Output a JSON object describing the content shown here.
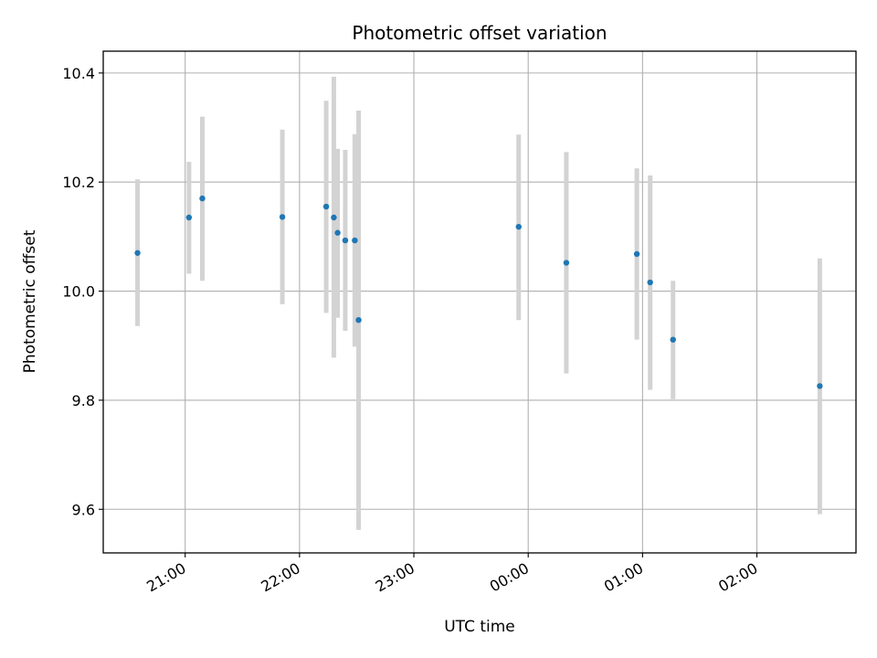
{
  "chart_data": {
    "type": "scatter",
    "title": "Photometric offset variation",
    "xlabel": "UTC time",
    "ylabel": "Photometric offset",
    "grid": true,
    "x_axis": {
      "start": "2000-01-01T20:17:00",
      "end": "2000-01-02T02:52:00",
      "ticks": [
        {
          "t": "2000-01-01T21:00:00",
          "label": "21:00"
        },
        {
          "t": "2000-01-01T22:00:00",
          "label": "22:00"
        },
        {
          "t": "2000-01-01T23:00:00",
          "label": "23:00"
        },
        {
          "t": "2000-01-02T00:00:00",
          "label": "00:00"
        },
        {
          "t": "2000-01-02T01:00:00",
          "label": "01:00"
        },
        {
          "t": "2000-01-02T02:00:00",
          "label": "02:00"
        }
      ]
    },
    "y_axis": {
      "range": [
        9.52,
        10.44
      ],
      "ticks": [
        9.6,
        9.8,
        10.0,
        10.2,
        10.4
      ],
      "tick_labels": [
        "9.6",
        "9.8",
        "10.0",
        "10.2",
        "10.4"
      ]
    },
    "series": [
      {
        "marker_color": "#1f77b4",
        "errorbar_color": "#d3d3d3",
        "points": [
          {
            "t": "2000-01-01T20:35:00",
            "y": 10.07,
            "lo": 9.936,
            "hi": 10.205
          },
          {
            "t": "2000-01-01T21:02:00",
            "y": 10.135,
            "lo": 10.032,
            "hi": 10.237
          },
          {
            "t": "2000-01-01T21:09:00",
            "y": 10.17,
            "lo": 10.019,
            "hi": 10.32
          },
          {
            "t": "2000-01-01T21:51:00",
            "y": 10.136,
            "lo": 9.976,
            "hi": 10.296
          },
          {
            "t": "2000-01-01T22:14:00",
            "y": 10.155,
            "lo": 9.96,
            "hi": 10.349
          },
          {
            "t": "2000-01-01T22:18:00",
            "y": 10.135,
            "lo": 9.878,
            "hi": 10.393
          },
          {
            "t": "2000-01-01T22:20:00",
            "y": 10.107,
            "lo": 9.951,
            "hi": 10.261
          },
          {
            "t": "2000-01-01T22:24:00",
            "y": 10.093,
            "lo": 9.927,
            "hi": 10.259
          },
          {
            "t": "2000-01-01T22:29:00",
            "y": 10.093,
            "lo": 9.898,
            "hi": 10.288
          },
          {
            "t": "2000-01-01T22:31:00",
            "y": 9.947,
            "lo": 9.562,
            "hi": 10.331
          },
          {
            "t": "2000-01-01T23:55:00",
            "y": 10.118,
            "lo": 9.947,
            "hi": 10.287
          },
          {
            "t": "2000-01-02T00:20:00",
            "y": 10.052,
            "lo": 9.849,
            "hi": 10.255
          },
          {
            "t": "2000-01-02T00:57:00",
            "y": 10.068,
            "lo": 9.911,
            "hi": 10.225
          },
          {
            "t": "2000-01-02T01:04:00",
            "y": 10.016,
            "lo": 9.819,
            "hi": 10.212
          },
          {
            "t": "2000-01-02T01:16:00",
            "y": 9.911,
            "lo": 9.802,
            "hi": 10.019
          },
          {
            "t": "2000-01-02T02:33:00",
            "y": 9.826,
            "lo": 9.591,
            "hi": 10.06
          }
        ]
      }
    ]
  }
}
